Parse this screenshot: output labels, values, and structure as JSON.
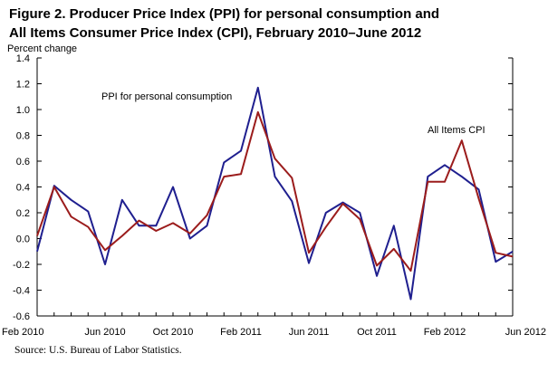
{
  "title": {
    "line1": "Figure 2. Producer Price Index (PPI) for personal consumption and",
    "line2": "All Items Consumer Price Index (CPI), February 2010–June 2012"
  },
  "source": "Source:  U.S. Bureau of Labor Statistics.",
  "chart_data": {
    "type": "line",
    "title": "Figure 2. Producer Price Index (PPI) for personal consumption and All Items Consumer Price Index (CPI), February 2010–June 2012",
    "ylabel": "Percent change",
    "xlabel": "",
    "ylim": [
      -0.6,
      1.4
    ],
    "yticks": [
      -0.6,
      -0.4,
      -0.2,
      0.0,
      0.2,
      0.4,
      0.6,
      0.8,
      1.0,
      1.2,
      1.4
    ],
    "ytick_labels": [
      "-0.6",
      "-0.4",
      "-0.2",
      "0.0",
      "0.2",
      "0.4",
      "0.6",
      "0.8",
      "1.0",
      "1.2",
      "1.4"
    ],
    "xticks": [
      {
        "index": 0,
        "label": "Feb 2010"
      },
      {
        "index": 4,
        "label": "Jun 2010"
      },
      {
        "index": 8,
        "label": "Oct 2010"
      },
      {
        "index": 12,
        "label": "Feb 2011"
      },
      {
        "index": 16,
        "label": "Jun 2011"
      },
      {
        "index": 20,
        "label": "Oct 2011"
      },
      {
        "index": 24,
        "label": "Feb 2012"
      },
      {
        "index": 28,
        "label": "Jun 2012"
      }
    ],
    "x": [
      "Feb 2010",
      "Mar 2010",
      "Apr 2010",
      "May 2010",
      "Jun 2010",
      "Jul 2010",
      "Aug 2010",
      "Sep 2010",
      "Oct 2010",
      "Nov 2010",
      "Dec 2010",
      "Jan 2011",
      "Feb 2011",
      "Mar 2011",
      "Apr 2011",
      "May 2011",
      "Jun 2011",
      "Jul 2011",
      "Aug 2011",
      "Sep 2011",
      "Oct 2011",
      "Nov 2011",
      "Dec 2011",
      "Jan 2012",
      "Feb 2012",
      "Mar 2012",
      "Apr 2012",
      "May 2012",
      "Jun 2012"
    ],
    "series": [
      {
        "name": "PPI for personal consumption",
        "color": "#1f1f8f",
        "values": [
          -0.1,
          0.41,
          0.3,
          0.21,
          -0.2,
          0.3,
          0.1,
          0.1,
          0.4,
          0.0,
          0.1,
          0.59,
          0.68,
          1.17,
          0.48,
          0.29,
          -0.19,
          0.2,
          0.28,
          0.2,
          -0.29,
          0.1,
          -0.47,
          0.48,
          0.57,
          0.48,
          0.38,
          -0.18,
          -0.1
        ]
      },
      {
        "name": "All Items CPI",
        "color": "#9b1c1c",
        "values": [
          0.02,
          0.4,
          0.17,
          0.09,
          -0.09,
          0.02,
          0.14,
          0.06,
          0.12,
          0.04,
          0.18,
          0.48,
          0.5,
          0.98,
          0.62,
          0.47,
          -0.11,
          0.09,
          0.27,
          0.15,
          -0.21,
          -0.08,
          -0.25,
          0.44,
          0.44,
          0.76,
          0.31,
          -0.11,
          -0.14
        ]
      }
    ],
    "annotations": [
      {
        "text": "PPI for personal consumption",
        "series": 0
      },
      {
        "text": "All Items CPI",
        "series": 1
      }
    ],
    "grid": false,
    "legend": "none"
  }
}
